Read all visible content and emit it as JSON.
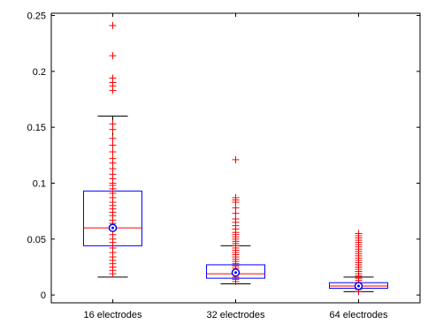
{
  "chart_data": {
    "type": "box",
    "title": "",
    "xlabel": "",
    "ylabel": "",
    "ylim": [
      -0.007,
      0.252
    ],
    "yticks": [
      {
        "value": 0,
        "label": "0"
      },
      {
        "value": 0.05,
        "label": "0.05"
      },
      {
        "value": 0.1,
        "label": "0.1"
      },
      {
        "value": 0.15,
        "label": "0.15"
      },
      {
        "value": 0.2,
        "label": "0.2"
      },
      {
        "value": 0.25,
        "label": "0.25"
      }
    ],
    "grid": false,
    "categories": [
      "16 electrodes",
      "32 electrodes",
      "64 electrodes"
    ],
    "boxes": [
      {
        "category": "16 electrodes",
        "whisker_low": 0.016,
        "q1": 0.044,
        "median": 0.06,
        "mean": 0.06,
        "q3": 0.093,
        "whisker_high": 0.16,
        "outliers": [
          0.241,
          0.214,
          0.194,
          0.19,
          0.187,
          0.183,
          0.153,
          0.148,
          0.14,
          0.134,
          0.128,
          0.122,
          0.118,
          0.113,
          0.108,
          0.104,
          0.1,
          0.098,
          0.095,
          0.091,
          0.087,
          0.083,
          0.08,
          0.077,
          0.074,
          0.071,
          0.067,
          0.064,
          0.058,
          0.054,
          0.05,
          0.047,
          0.042,
          0.038,
          0.034,
          0.031,
          0.028,
          0.025,
          0.022,
          0.019
        ]
      },
      {
        "category": "32 electrodes",
        "whisker_low": 0.01,
        "q1": 0.015,
        "median": 0.019,
        "mean": 0.02,
        "q3": 0.027,
        "whisker_high": 0.044,
        "outliers": [
          0.121,
          0.087,
          0.085,
          0.083,
          0.078,
          0.073,
          0.068,
          0.065,
          0.062,
          0.059,
          0.056,
          0.054,
          0.052,
          0.05,
          0.048,
          0.046,
          0.044,
          0.042,
          0.04,
          0.038,
          0.036,
          0.034,
          0.032,
          0.03,
          0.028,
          0.026,
          0.024,
          0.022,
          0.02,
          0.018,
          0.016,
          0.014,
          0.012
        ]
      },
      {
        "category": "64 electrodes",
        "whisker_low": 0.003,
        "q1": 0.006,
        "median": 0.008,
        "mean": 0.008,
        "q3": 0.011,
        "whisker_high": 0.016,
        "outliers": [
          0.055,
          0.053,
          0.051,
          0.049,
          0.047,
          0.045,
          0.043,
          0.041,
          0.039,
          0.037,
          0.035,
          0.033,
          0.031,
          0.029,
          0.027,
          0.025,
          0.023,
          0.021,
          0.019,
          0.017,
          0.015,
          0.013,
          0.011,
          0.009,
          0.007,
          0.005,
          0.003
        ]
      }
    ],
    "colors": {
      "box": "#0000ff",
      "median": "#ff0000",
      "whisker": "#000000",
      "outlier": "#ff0000",
      "mean_marker": "#0000ff"
    }
  }
}
